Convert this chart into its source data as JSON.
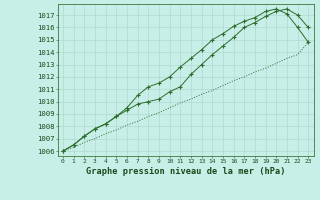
{
  "hours": [
    0,
    1,
    2,
    3,
    4,
    5,
    6,
    7,
    8,
    9,
    10,
    11,
    12,
    13,
    14,
    15,
    16,
    17,
    18,
    19,
    20,
    21,
    22,
    23
  ],
  "line1": [
    1006.0,
    1006.5,
    1007.2,
    1007.8,
    1008.2,
    1008.8,
    1009.5,
    1010.5,
    1011.2,
    1011.5,
    1012.0,
    1012.8,
    1013.5,
    1014.2,
    1015.0,
    1015.5,
    1016.1,
    1016.5,
    1016.8,
    1017.3,
    1017.5,
    1017.1,
    1016.0,
    1014.8
  ],
  "line2": [
    1006.0,
    1006.5,
    1007.2,
    1007.8,
    1008.2,
    1008.8,
    1009.3,
    1009.8,
    1010.0,
    1010.2,
    1010.8,
    1011.2,
    1012.2,
    1013.0,
    1013.8,
    1014.5,
    1015.2,
    1016.0,
    1016.4,
    1016.9,
    1017.3,
    1017.5,
    1017.0,
    1016.0
  ],
  "line3": [
    1006.0,
    1006.3,
    1006.7,
    1007.0,
    1007.4,
    1007.7,
    1008.1,
    1008.4,
    1008.8,
    1009.1,
    1009.5,
    1009.9,
    1010.2,
    1010.6,
    1010.9,
    1011.3,
    1011.7,
    1012.0,
    1012.4,
    1012.7,
    1013.1,
    1013.5,
    1013.8,
    1014.8
  ],
  "line_color": "#2d6e2d",
  "bg_color": "#c8eee8",
  "grid_color": "#b0d8d0",
  "title": "Graphe pression niveau de la mer (hPa)",
  "ytick_vals": [
    1006,
    1007,
    1008,
    1009,
    1010,
    1011,
    1012,
    1013,
    1014,
    1015,
    1016,
    1017
  ],
  "ylim": [
    1005.6,
    1017.9
  ],
  "xlim": [
    -0.5,
    23.5
  ],
  "xtick_fontsize": 4.5,
  "ytick_fontsize": 5.2,
  "title_fontsize": 6.2
}
